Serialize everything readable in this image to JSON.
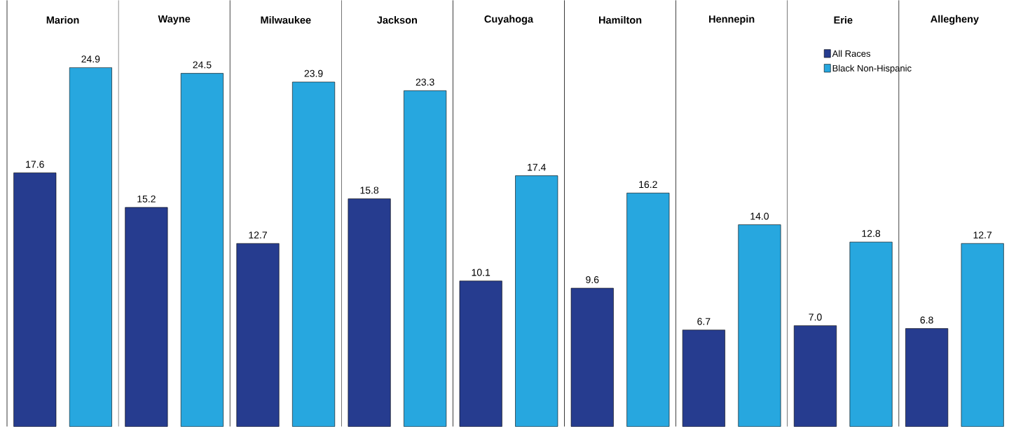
{
  "chart_data": {
    "type": "bar",
    "categories": [
      "Marion",
      "Wayne",
      "Milwaukee",
      "Jackson",
      "Cuyahoga",
      "Hamilton",
      "Hennepin",
      "Erie",
      "Allegheny"
    ],
    "series": [
      {
        "name": "All Races",
        "color": "#263c8f",
        "values": [
          17.6,
          15.2,
          12.7,
          15.8,
          10.1,
          9.6,
          6.7,
          7.0,
          6.8
        ],
        "value_labels": [
          "17.6",
          "15.2",
          "12.7",
          "15.8",
          "10.1",
          "9.6",
          "6.7",
          "7.0",
          "6.8"
        ]
      },
      {
        "name": "Black Non-Hispanic",
        "color": "#27a7df",
        "values": [
          24.9,
          24.5,
          23.9,
          23.3,
          17.4,
          16.2,
          14.0,
          12.8,
          12.7
        ],
        "value_labels": [
          "24.9",
          "24.5",
          "23.9",
          "23.3",
          "17.4",
          "16.2",
          "14.0",
          "12.8",
          "12.7"
        ]
      }
    ],
    "legend": "top right"
  }
}
